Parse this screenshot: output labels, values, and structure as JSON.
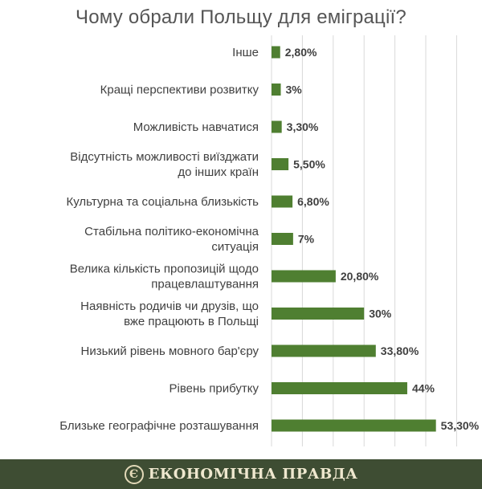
{
  "chart_data": {
    "type": "bar",
    "orientation": "horizontal",
    "title": "Чому обрали Польщу для еміграції?",
    "categories": [
      "Інше",
      "Кращі перспективи розвитку",
      "Можливість навчатися",
      "Відсутність можливості виїзджати до інших країн",
      "Культурна та соціальна близькість",
      "Стабільна політико-економічна ситуація",
      "Велика кількість пропозицій щодо працевлаштування",
      "Наявність родичів чи друзів, що вже працюють в Польщі",
      "Низький рівень мовного бар'єру",
      "Рівень прибутку",
      "Близьке географічне розташування"
    ],
    "category_lines": [
      [
        "Інше"
      ],
      [
        "Кращі перспективи розвитку"
      ],
      [
        "Можливість навчатися"
      ],
      [
        "Відсутність можливості виїзджати",
        "до інших країн"
      ],
      [
        "Культурна та соціальна близькість"
      ],
      [
        "Стабільна політико-економічна",
        "ситуація"
      ],
      [
        "Велика кількість пропозицій щодо",
        "працевлаштування"
      ],
      [
        "Наявність родичів чи друзів, що",
        "вже працюють в Польщі"
      ],
      [
        "Низький рівень мовного бар'єру"
      ],
      [
        "Рівень прибутку"
      ],
      [
        "Близьке географічне розташування"
      ]
    ],
    "values": [
      2.8,
      3,
      3.3,
      5.5,
      6.8,
      7,
      20.8,
      30,
      33.8,
      44,
      53.3
    ],
    "value_labels": [
      "2,80%",
      "3%",
      "3,30%",
      "5,50%",
      "6,80%",
      "7%",
      "20,80%",
      "30%",
      "33,80%",
      "44%",
      "53,30%"
    ],
    "xlim": [
      0,
      60
    ],
    "grid": true,
    "bar_color": "#4f7f31"
  },
  "footer": {
    "logo_glyph": "Є",
    "brand": "ЕКОНОМІЧНА ПРАВДА",
    "background": "#3e4d33"
  }
}
